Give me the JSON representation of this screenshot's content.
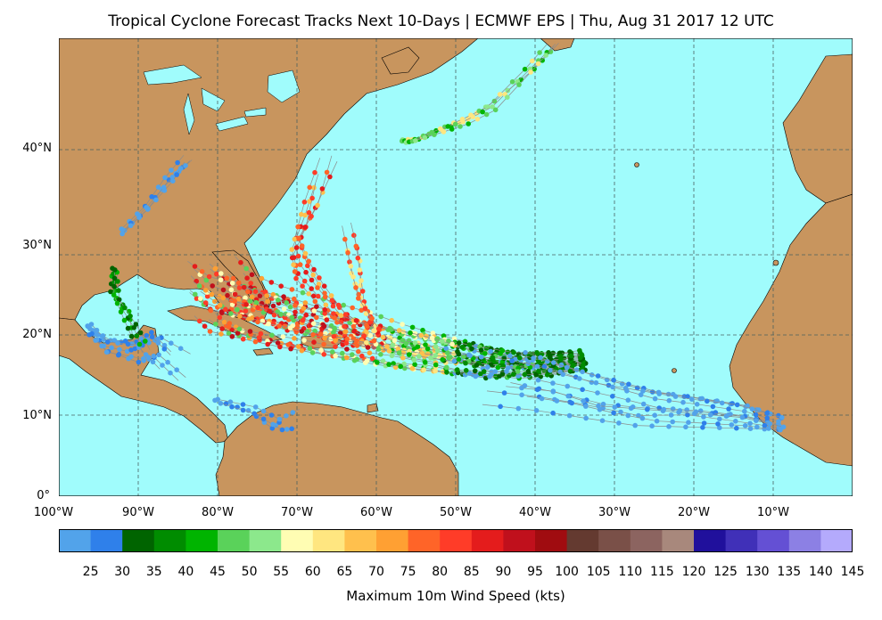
{
  "title": "Tropical Cyclone Forecast Tracks Next 10-Days | ECMWF EPS | Thu, Aug 31 2017 12 UTC",
  "map": {
    "ocean_color": "#a0fcfc",
    "land_color": "#c8955e",
    "lat_labels": [
      "40°N",
      "30°N",
      "20°N",
      "10°N",
      "0°"
    ],
    "lon_labels": [
      "100°W",
      "90°W",
      "80°W",
      "70°W",
      "60°W",
      "50°W",
      "40°W",
      "30°W",
      "20°W",
      "10°W"
    ],
    "extent": {
      "lon": [
        -100,
        0
      ],
      "lat": [
        0,
        57
      ]
    },
    "track_line_color": "#8c8c8c"
  },
  "colorbar": {
    "label": "Maximum 10m Wind Speed (kts)",
    "tick_labels": [
      "25",
      "30",
      "35",
      "40",
      "45",
      "50",
      "55",
      "60",
      "65",
      "70",
      "75",
      "80",
      "85",
      "90",
      "95",
      "100",
      "105",
      "110",
      "115",
      "120",
      "125",
      "130",
      "135",
      "140",
      "145"
    ],
    "colors": [
      "#52a3ea",
      "#2f80ea",
      "#006400",
      "#008c00",
      "#00b400",
      "#5ad25a",
      "#8ce88c",
      "#fffdb3",
      "#ffe680",
      "#ffc04d",
      "#ffa033",
      "#ff6428",
      "#ff3c28",
      "#e41c1c",
      "#c0101c",
      "#a00c10",
      "#643a30",
      "#7a5048",
      "#8c6460",
      "#a8887c",
      "#20109c",
      "#4030b8",
      "#6450d4",
      "#8c80e4",
      "#b4aafc"
    ]
  },
  "storms": [
    {
      "desc": "main",
      "points": [
        [
          -34,
          16.8
        ],
        [
          -38,
          16.5
        ],
        [
          -42,
          16.4
        ],
        [
          -46,
          16.8
        ],
        [
          -50,
          17.5
        ],
        [
          -54,
          18.2
        ],
        [
          -58,
          19.0
        ],
        [
          -62,
          19.8
        ],
        [
          -66,
          20.8
        ],
        [
          -70,
          21.8
        ],
        [
          -74,
          22.8
        ],
        [
          -78,
          24.0
        ],
        [
          -80,
          25.8
        ]
      ]
    },
    {
      "desc": "north-branch",
      "points": [
        [
          -60,
          20
        ],
        [
          -64,
          22
        ],
        [
          -67,
          25
        ],
        [
          -69,
          28
        ],
        [
          -70,
          31
        ],
        [
          -68,
          35
        ],
        [
          -66,
          40.5
        ]
      ]
    },
    {
      "desc": "east-branch",
      "points": [
        [
          -60,
          20.5
        ],
        [
          -62,
          24
        ],
        [
          -63,
          28
        ],
        [
          -64,
          32.5
        ]
      ]
    },
    {
      "desc": "ne-track",
      "points": [
        [
          -56.5,
          44
        ],
        [
          -55,
          44.5
        ],
        [
          -52,
          45.5
        ],
        [
          -49,
          46.6
        ],
        [
          -45.5,
          48.5
        ],
        [
          -41,
          53
        ],
        [
          -38,
          56
        ]
      ]
    }
  ]
}
